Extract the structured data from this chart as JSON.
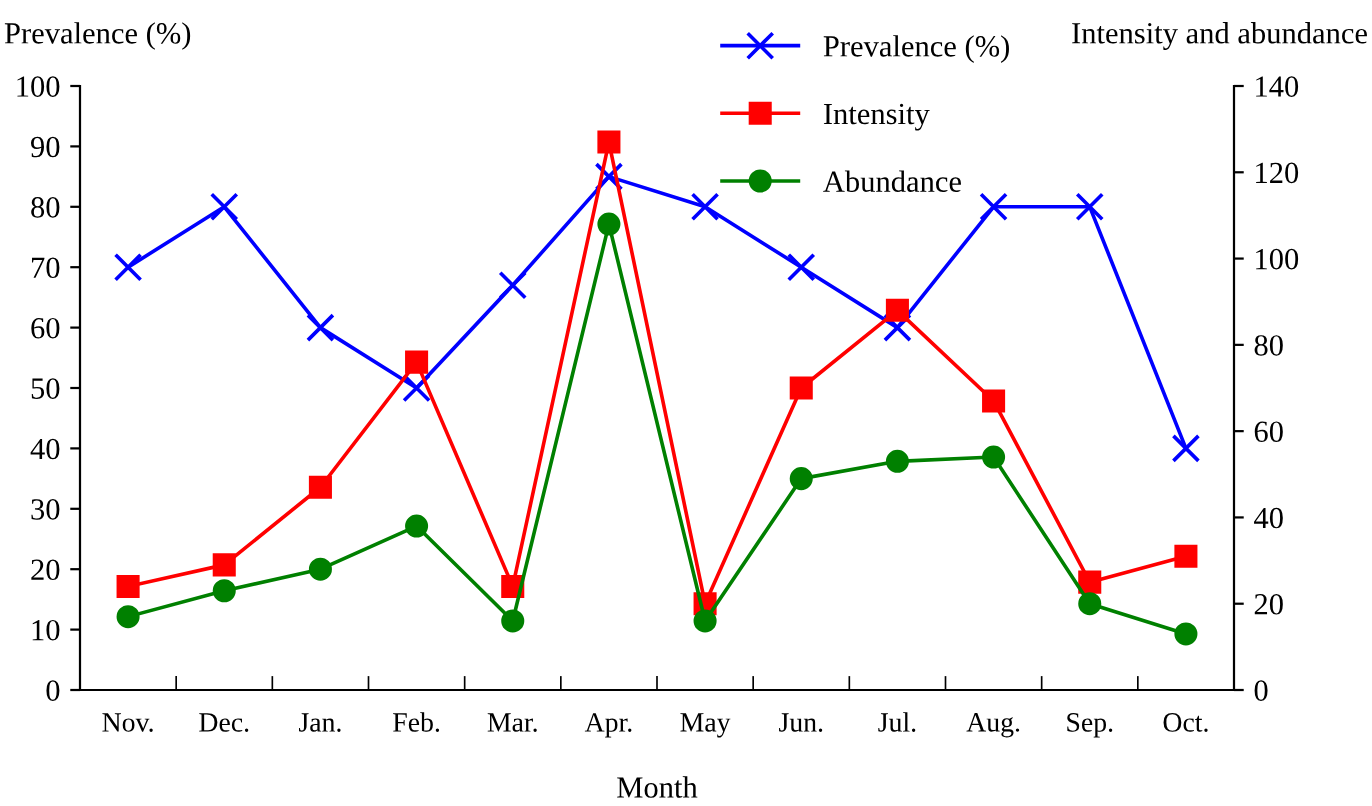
{
  "chart_data": {
    "type": "line",
    "xlabel": "Month",
    "ylabel": "Prevalence (%)",
    "y2label": "Intensity and abundance",
    "categories": [
      "Nov.",
      "Dec.",
      "Jan.",
      "Feb.",
      "Mar.",
      "Apr.",
      "May",
      "Jun.",
      "Jul.",
      "Aug.",
      "Sep.",
      "Oct."
    ],
    "series": [
      {
        "name": "Prevalence (%)",
        "color": "#0000ff",
        "marker": "cross",
        "values": [
          70,
          80,
          60,
          50,
          67,
          85,
          80,
          70,
          60,
          80,
          80,
          40
        ]
      },
      {
        "name": "Intensity",
        "color": "#ff0000",
        "marker": "square",
        "axis": "y2",
        "values": [
          24,
          29,
          47,
          76,
          24,
          127,
          20,
          70,
          88,
          67,
          25,
          31
        ]
      },
      {
        "name": "Abundance",
        "color": "#008000",
        "marker": "circle",
        "axis": "y2",
        "values": [
          17,
          23,
          28,
          38,
          16,
          108,
          16,
          49,
          53,
          54,
          20,
          13
        ]
      }
    ],
    "ylim": [
      0,
      100
    ],
    "yticks": [
      0,
      10,
      20,
      30,
      40,
      50,
      60,
      70,
      80,
      90,
      100
    ],
    "y2lim": [
      0,
      140
    ],
    "y2ticks": [
      0,
      20,
      40,
      60,
      80,
      100,
      120,
      140
    ],
    "grid": false,
    "legend": "top right",
    "line_style": "solid"
  }
}
